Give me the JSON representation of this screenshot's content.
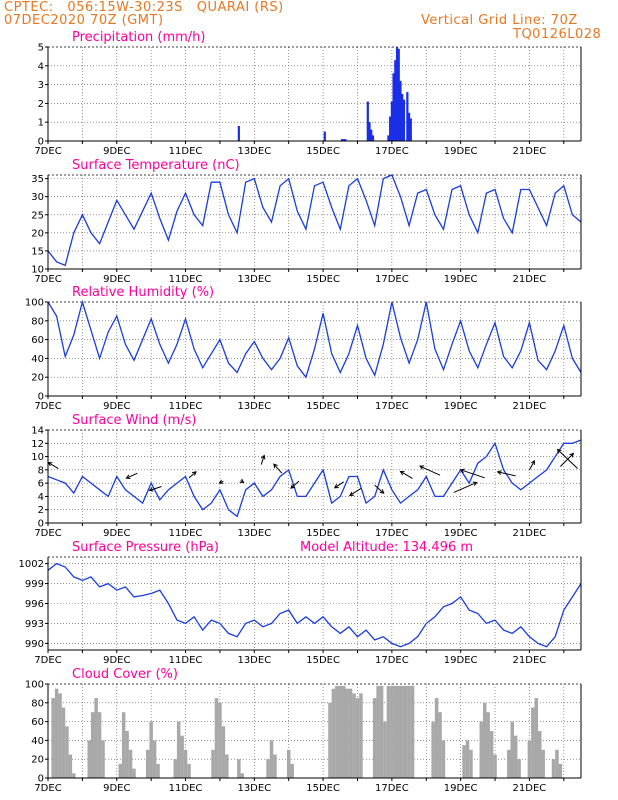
{
  "header": {
    "line1": "CPTEC:   056:15W-30:23S   QUARAI (RS)",
    "line2": "07DEC2020 70Z (GMT)",
    "grid_line": "Vertical Grid Line: 70Z",
    "code": "TQ0126L028"
  },
  "colors": {
    "header": "#e87722",
    "title": "#ff0099",
    "line": "#1a3ce0",
    "bar": "#1a2ee8",
    "cloud": "#a8a8a8"
  },
  "chart_data": [
    {
      "id": "precip",
      "type": "bar",
      "title": "Precipitation (mm/h)",
      "xlabels": [
        "7DEC",
        "9DEC",
        "11DEC",
        "13DEC",
        "15DEC",
        "17DEC",
        "19DEC",
        "21DEC"
      ],
      "ylim": [
        0,
        5
      ],
      "yticks": [
        0,
        1,
        2,
        3,
        4,
        5
      ],
      "x_range_days": [
        7,
        22.5
      ],
      "values": [
        [
          12.55,
          0.8
        ],
        [
          15.05,
          0.5
        ],
        [
          15.55,
          0.1
        ],
        [
          15.6,
          0.1
        ],
        [
          15.65,
          0.1
        ],
        [
          16.3,
          2.1
        ],
        [
          16.35,
          1.0
        ],
        [
          16.4,
          0.6
        ],
        [
          16.45,
          0.3
        ],
        [
          16.9,
          0.3
        ],
        [
          16.95,
          1.3
        ],
        [
          17.0,
          2.1
        ],
        [
          17.05,
          3.6
        ],
        [
          17.1,
          4.3
        ],
        [
          17.15,
          5.0
        ],
        [
          17.2,
          4.9
        ],
        [
          17.25,
          3.2
        ],
        [
          17.3,
          2.5
        ],
        [
          17.35,
          2.2
        ],
        [
          17.45,
          2.6
        ],
        [
          17.5,
          1.5
        ],
        [
          17.55,
          1.2
        ]
      ]
    },
    {
      "id": "temp",
      "type": "line",
      "title": "Surface Temperature (nC)",
      "ylim": [
        10,
        36
      ],
      "yticks": [
        10,
        15,
        20,
        25,
        30,
        35
      ],
      "x_range_days": [
        7,
        22.5
      ],
      "x": [
        7.0,
        7.25,
        7.5,
        7.75,
        8.0,
        8.25,
        8.5,
        8.75,
        9.0,
        9.25,
        9.5,
        9.75,
        10.0,
        10.25,
        10.5,
        10.75,
        11.0,
        11.25,
        11.5,
        11.75,
        12.0,
        12.25,
        12.5,
        12.75,
        13.0,
        13.25,
        13.5,
        13.75,
        14.0,
        14.25,
        14.5,
        14.75,
        15.0,
        15.25,
        15.5,
        15.75,
        16.0,
        16.25,
        16.5,
        16.75,
        17.0,
        17.25,
        17.5,
        17.75,
        18.0,
        18.25,
        18.5,
        18.75,
        19.0,
        19.25,
        19.5,
        19.75,
        20.0,
        20.25,
        20.5,
        20.75,
        21.0,
        21.25,
        21.5,
        21.75,
        22.0,
        22.25,
        22.5
      ],
      "y": [
        15,
        12,
        11,
        20,
        25,
        20,
        17,
        23,
        29,
        25,
        21,
        26,
        31,
        24,
        18,
        26,
        31,
        25,
        22,
        34,
        34,
        25,
        20,
        34,
        35,
        27,
        23,
        33,
        35,
        26,
        21,
        33,
        34,
        27,
        21,
        33,
        35,
        29,
        22,
        35,
        36,
        30,
        22,
        31,
        32,
        25,
        21,
        32,
        33,
        25,
        20,
        31,
        32,
        24,
        20,
        32,
        32,
        27,
        22,
        31,
        33,
        25,
        23
      ]
    },
    {
      "id": "rh",
      "type": "line",
      "title": "Relative Humidity (%)",
      "ylim": [
        0,
        100
      ],
      "yticks": [
        0,
        20,
        40,
        60,
        80,
        100
      ],
      "x_range_days": [
        7,
        22.5
      ],
      "x": [
        7.0,
        7.25,
        7.5,
        7.75,
        8.0,
        8.25,
        8.5,
        8.75,
        9.0,
        9.25,
        9.5,
        9.75,
        10.0,
        10.25,
        10.5,
        10.75,
        11.0,
        11.25,
        11.5,
        11.75,
        12.0,
        12.25,
        12.5,
        12.75,
        13.0,
        13.25,
        13.5,
        13.75,
        14.0,
        14.25,
        14.5,
        14.75,
        15.0,
        15.25,
        15.5,
        15.75,
        16.0,
        16.25,
        16.5,
        16.75,
        17.0,
        17.25,
        17.5,
        17.75,
        18.0,
        18.25,
        18.5,
        18.75,
        19.0,
        19.25,
        19.5,
        19.75,
        20.0,
        20.25,
        20.5,
        20.75,
        21.0,
        21.25,
        21.5,
        21.75,
        22.0,
        22.25,
        22.5
      ],
      "y": [
        100,
        85,
        42,
        65,
        100,
        70,
        40,
        68,
        85,
        55,
        38,
        60,
        82,
        55,
        35,
        55,
        82,
        50,
        30,
        45,
        60,
        35,
        25,
        45,
        58,
        40,
        28,
        40,
        62,
        32,
        20,
        50,
        88,
        45,
        25,
        45,
        75,
        40,
        22,
        55,
        100,
        62,
        35,
        60,
        100,
        50,
        28,
        55,
        80,
        48,
        30,
        55,
        78,
        42,
        30,
        48,
        78,
        38,
        28,
        48,
        75,
        40,
        25
      ]
    },
    {
      "id": "wind",
      "type": "line",
      "title": "Surface Wind (m/s)",
      "ylim": [
        0,
        14
      ],
      "yticks": [
        0,
        2,
        4,
        6,
        8,
        10,
        12,
        14
      ],
      "x_range_days": [
        7,
        22.5
      ],
      "x": [
        7.0,
        7.25,
        7.5,
        7.75,
        8.0,
        8.25,
        8.5,
        8.75,
        9.0,
        9.25,
        9.5,
        9.75,
        10.0,
        10.25,
        10.5,
        10.75,
        11.0,
        11.25,
        11.5,
        11.75,
        12.0,
        12.25,
        12.5,
        12.75,
        13.0,
        13.25,
        13.5,
        13.75,
        14.0,
        14.25,
        14.5,
        14.75,
        15.0,
        15.25,
        15.5,
        15.75,
        16.0,
        16.25,
        16.5,
        16.75,
        17.0,
        17.25,
        17.5,
        17.75,
        18.0,
        18.25,
        18.5,
        18.75,
        19.0,
        19.25,
        19.5,
        19.75,
        20.0,
        20.25,
        20.5,
        20.75,
        21.0,
        21.25,
        21.5,
        21.75,
        22.0,
        22.25,
        22.5
      ],
      "y": [
        7,
        6.5,
        6,
        4.5,
        7,
        6,
        5,
        4,
        7,
        5,
        4,
        3,
        6,
        3.5,
        5,
        6,
        7,
        4,
        2,
        3,
        5,
        2,
        1,
        5,
        6,
        4,
        5,
        7,
        8,
        4,
        4,
        6,
        8,
        3,
        4,
        7,
        7,
        3,
        4,
        8,
        5,
        3,
        4,
        5,
        7,
        4,
        4,
        6,
        8,
        6,
        9,
        10,
        12,
        8,
        6,
        5,
        6,
        7,
        8,
        10,
        12,
        12,
        12.5
      ],
      "arrows": [
        {
          "x": 7.3,
          "y": 8.2,
          "dx": -10,
          "dy": -6
        },
        {
          "x": 9.6,
          "y": 7.5,
          "dx": -11,
          "dy": 5
        },
        {
          "x": 10.3,
          "y": 5.5,
          "dx": -12,
          "dy": 4
        },
        {
          "x": 11.1,
          "y": 6.8,
          "dx": 7,
          "dy": -6
        },
        {
          "x": 12.1,
          "y": 6.3,
          "dx": -4,
          "dy": 2
        },
        {
          "x": 12.6,
          "y": 6.4,
          "dx": 3,
          "dy": 2
        },
        {
          "x": 13.2,
          "y": 8.8,
          "dx": 3,
          "dy": -9
        },
        {
          "x": 13.8,
          "y": 7.5,
          "dx": -8,
          "dy": -9
        },
        {
          "x": 14.3,
          "y": 6.3,
          "dx": -8,
          "dy": 7
        },
        {
          "x": 15.6,
          "y": 6.2,
          "dx": -9,
          "dy": 6
        },
        {
          "x": 16.1,
          "y": 5.2,
          "dx": -11,
          "dy": 7
        },
        {
          "x": 16.5,
          "y": 5.7,
          "dx": 9,
          "dy": 8
        },
        {
          "x": 17.6,
          "y": 6.7,
          "dx": -12,
          "dy": -7
        },
        {
          "x": 18.4,
          "y": 7.2,
          "dx": -20,
          "dy": -9
        },
        {
          "x": 18.8,
          "y": 4.6,
          "dx": 23,
          "dy": -10
        },
        {
          "x": 19.7,
          "y": 6.8,
          "dx": -24,
          "dy": -8
        },
        {
          "x": 20.6,
          "y": 7.1,
          "dx": -18,
          "dy": -4
        },
        {
          "x": 21.0,
          "y": 8.0,
          "dx": 5,
          "dy": -9
        },
        {
          "x": 21.9,
          "y": 8.5,
          "dx": 13,
          "dy": -13
        },
        {
          "x": 22.4,
          "y": 8.2,
          "dx": -20,
          "dy": -19
        }
      ]
    },
    {
      "id": "pressure",
      "type": "line",
      "title": "Surface Pressure (hPa)",
      "subtitle": "Model Altitude: 134.496  m",
      "ylim": [
        989,
        1003
      ],
      "yticks": [
        990,
        993,
        996,
        999,
        1002
      ],
      "x_range_days": [
        7,
        22.5
      ],
      "x": [
        7.0,
        7.25,
        7.5,
        7.75,
        8.0,
        8.25,
        8.5,
        8.75,
        9.0,
        9.25,
        9.5,
        9.75,
        10.0,
        10.25,
        10.5,
        10.75,
        11.0,
        11.25,
        11.5,
        11.75,
        12.0,
        12.25,
        12.5,
        12.75,
        13.0,
        13.25,
        13.5,
        13.75,
        14.0,
        14.25,
        14.5,
        14.75,
        15.0,
        15.25,
        15.5,
        15.75,
        16.0,
        16.25,
        16.5,
        16.75,
        17.0,
        17.25,
        17.5,
        17.75,
        18.0,
        18.25,
        18.5,
        18.75,
        19.0,
        19.25,
        19.5,
        19.75,
        20.0,
        20.25,
        20.5,
        20.75,
        21.0,
        21.25,
        21.5,
        21.75,
        22.0,
        22.25,
        22.5
      ],
      "y": [
        1001,
        1002,
        1001.5,
        1000,
        999.5,
        1000,
        998.5,
        999,
        998,
        998.5,
        997,
        997.2,
        997.5,
        998,
        996,
        993.5,
        993,
        994,
        992,
        993.5,
        993,
        991.5,
        991,
        993,
        993.5,
        992.5,
        993,
        994.5,
        995,
        993,
        994,
        993,
        994,
        992.5,
        991.5,
        992.5,
        991,
        992,
        990.5,
        991,
        990,
        989.5,
        990,
        991,
        993,
        994,
        995.5,
        996,
        997,
        995,
        994.5,
        993,
        993.5,
        992,
        991.5,
        992.5,
        991,
        990,
        989.5,
        991,
        995,
        997,
        999
      ]
    },
    {
      "id": "cloud",
      "type": "bar",
      "title": "Cloud Cover (%)",
      "ylim": [
        0,
        100
      ],
      "yticks": [
        0,
        20,
        40,
        60,
        80,
        100
      ],
      "x_range_days": [
        7,
        22.5
      ],
      "values": [
        [
          7.15,
          85
        ],
        [
          7.25,
          95
        ],
        [
          7.35,
          90
        ],
        [
          7.45,
          75
        ],
        [
          7.55,
          55
        ],
        [
          7.65,
          25
        ],
        [
          7.75,
          5
        ],
        [
          8.2,
          40
        ],
        [
          8.3,
          70
        ],
        [
          8.4,
          85
        ],
        [
          8.5,
          70
        ],
        [
          8.6,
          40
        ],
        [
          9.1,
          15
        ],
        [
          9.2,
          70
        ],
        [
          9.3,
          50
        ],
        [
          9.4,
          30
        ],
        [
          9.5,
          10
        ],
        [
          9.9,
          30
        ],
        [
          10.0,
          60
        ],
        [
          10.1,
          40
        ],
        [
          10.2,
          15
        ],
        [
          10.7,
          20
        ],
        [
          10.8,
          60
        ],
        [
          10.9,
          45
        ],
        [
          11.0,
          30
        ],
        [
          11.1,
          15
        ],
        [
          11.8,
          30
        ],
        [
          11.9,
          85
        ],
        [
          12.0,
          80
        ],
        [
          12.1,
          55
        ],
        [
          12.2,
          25
        ],
        [
          12.55,
          20
        ],
        [
          12.65,
          5
        ],
        [
          13.4,
          20
        ],
        [
          13.5,
          40
        ],
        [
          13.6,
          25
        ],
        [
          14.0,
          30
        ],
        [
          14.1,
          15
        ],
        [
          15.2,
          80
        ],
        [
          15.3,
          95
        ],
        [
          15.4,
          98
        ],
        [
          15.5,
          98
        ],
        [
          15.6,
          98
        ],
        [
          15.7,
          95
        ],
        [
          15.8,
          95
        ],
        [
          15.9,
          90
        ],
        [
          16.0,
          85
        ],
        [
          16.1,
          90
        ],
        [
          16.5,
          85
        ],
        [
          16.6,
          98
        ],
        [
          16.7,
          98
        ],
        [
          16.8,
          60
        ],
        [
          16.9,
          98
        ],
        [
          17.0,
          98
        ],
        [
          17.1,
          98
        ],
        [
          17.2,
          98
        ],
        [
          17.3,
          98
        ],
        [
          17.4,
          98
        ],
        [
          17.5,
          98
        ],
        [
          17.6,
          98
        ],
        [
          18.2,
          60
        ],
        [
          18.3,
          85
        ],
        [
          18.4,
          70
        ],
        [
          18.5,
          40
        ],
        [
          19.1,
          35
        ],
        [
          19.2,
          40
        ],
        [
          19.3,
          30
        ],
        [
          19.6,
          60
        ],
        [
          19.7,
          80
        ],
        [
          19.8,
          70
        ],
        [
          19.9,
          50
        ],
        [
          20.0,
          25
        ],
        [
          20.4,
          30
        ],
        [
          20.5,
          60
        ],
        [
          20.6,
          45
        ],
        [
          20.7,
          20
        ],
        [
          21.0,
          40
        ],
        [
          21.1,
          75
        ],
        [
          21.2,
          85
        ],
        [
          21.3,
          50
        ],
        [
          21.4,
          30
        ],
        [
          21.7,
          20
        ],
        [
          21.8,
          30
        ],
        [
          21.9,
          15
        ]
      ]
    }
  ]
}
